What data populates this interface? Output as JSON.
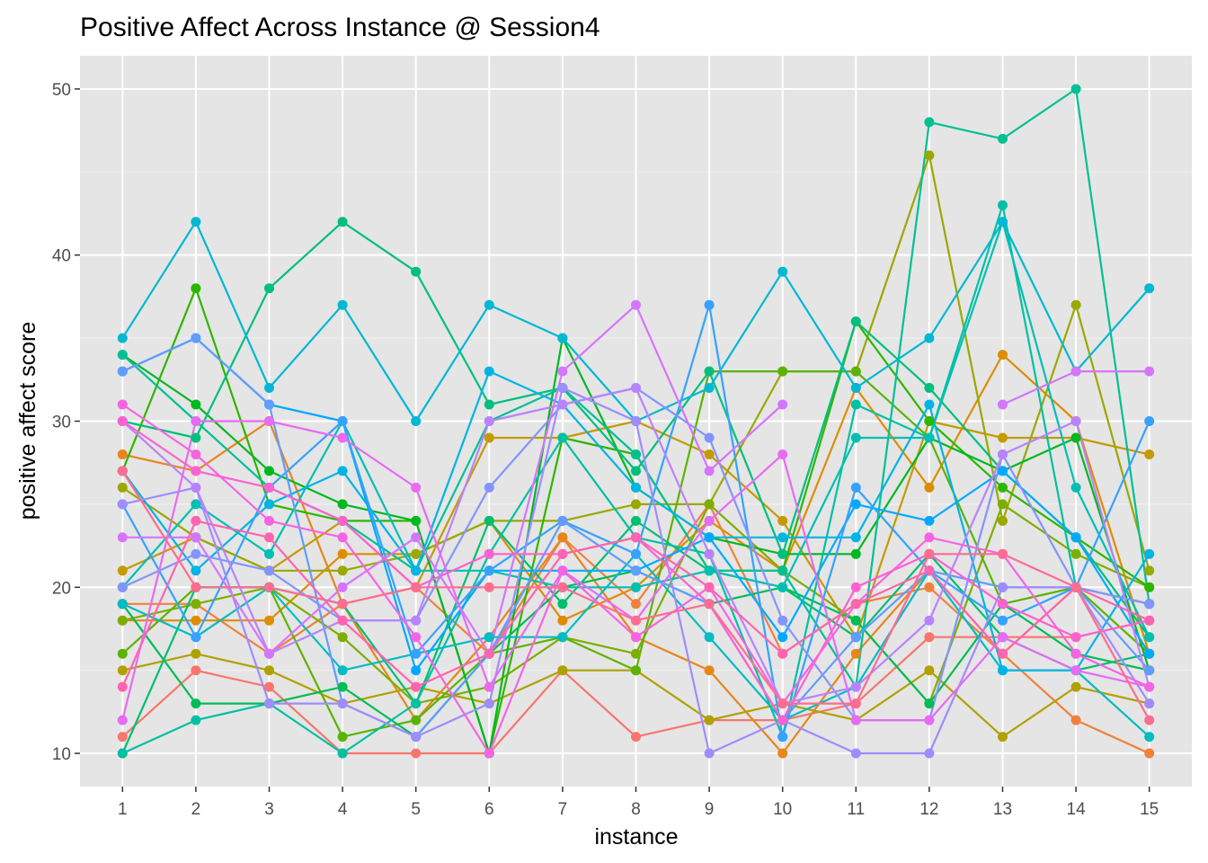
{
  "chart_data": {
    "type": "line",
    "title": "Positive Affect Across Instance @ Session4",
    "xlabel": "instance",
    "ylabel": "positive affect score",
    "x": [
      1,
      2,
      3,
      4,
      5,
      6,
      7,
      8,
      9,
      10,
      11,
      12,
      13,
      14,
      15
    ],
    "x_tick_labels": [
      "1",
      "2",
      "3",
      "4",
      "5",
      "6",
      "7",
      "8",
      "9",
      "10",
      "11",
      "12",
      "13",
      "14",
      "15"
    ],
    "y_ticks": [
      10,
      20,
      30,
      40,
      50
    ],
    "y_tick_labels": [
      "10",
      "20",
      "30",
      "40",
      "50"
    ],
    "xlim": [
      0.42,
      15.58
    ],
    "ylim": [
      8,
      52
    ],
    "grid": true,
    "legend": "none",
    "colors": {
      "panel_background": "#e5e5e5",
      "grid_major": "#ffffff",
      "grid_minor": "#f2f2f2",
      "tick_mark": "#333333"
    },
    "series": [
      {
        "color": "#F8766D",
        "values": [
          11,
          15,
          14,
          10,
          10,
          10,
          15,
          11,
          12,
          12,
          13,
          17,
          17,
          17,
          18
        ]
      },
      {
        "color": "#F0813C",
        "values": [
          19,
          19,
          16,
          19,
          20,
          16,
          23,
          19,
          25,
          16,
          19,
          20,
          16,
          12,
          10
        ]
      },
      {
        "color": "#E7861B",
        "values": [
          28,
          27,
          30,
          19,
          12,
          17,
          23,
          17,
          15,
          10,
          16,
          21,
          16,
          20,
          19
        ]
      },
      {
        "color": "#DD8D00",
        "values": [
          18,
          18,
          18,
          22,
          22,
          24,
          18,
          20,
          24,
          21,
          32,
          26,
          34,
          30,
          16
        ]
      },
      {
        "color": "#C49A00",
        "values": [
          21,
          23,
          21,
          24,
          20,
          29,
          29,
          30,
          28,
          24,
          17,
          30,
          29,
          29,
          28
        ]
      },
      {
        "color": "#AFA100",
        "values": [
          15,
          16,
          15,
          13,
          14,
          13,
          15,
          15,
          12,
          13,
          12,
          15,
          11,
          14,
          13
        ]
      },
      {
        "color": "#9AA800",
        "values": [
          26,
          23,
          21,
          21,
          22,
          24,
          24,
          25,
          25,
          33,
          33,
          46,
          24,
          37,
          21
        ]
      },
      {
        "color": "#7CAE00",
        "values": [
          18,
          19,
          20,
          17,
          13,
          14,
          17,
          16,
          25,
          21,
          18,
          13,
          25,
          22,
          20
        ]
      },
      {
        "color": "#5BB300",
        "values": [
          16,
          20,
          20,
          11,
          12,
          16,
          17,
          15,
          33,
          33,
          33,
          29,
          19,
          20,
          16
        ]
      },
      {
        "color": "#2DB600",
        "values": [
          27,
          38,
          25,
          24,
          24,
          10,
          29,
          28,
          21,
          21,
          36,
          30,
          26,
          23,
          20
        ]
      },
      {
        "color": "#00B81F",
        "values": [
          34,
          31,
          27,
          25,
          24,
          10,
          35,
          26,
          23,
          22,
          22,
          29,
          27,
          29,
          15
        ]
      },
      {
        "color": "#00BC56",
        "values": [
          19,
          13,
          13,
          14,
          11,
          16,
          20,
          21,
          19,
          20,
          18,
          13,
          19,
          16,
          15
        ]
      },
      {
        "color": "#00BE70",
        "values": [
          10,
          20,
          20,
          19,
          13,
          24,
          19,
          24,
          21,
          20,
          17,
          22,
          17,
          15,
          16
        ]
      },
      {
        "color": "#00BF7D",
        "values": [
          30,
          29,
          38,
          42,
          39,
          31,
          32,
          27,
          33,
          22,
          36,
          32,
          27,
          23,
          17
        ]
      },
      {
        "color": "#00C094",
        "values": [
          34,
          30,
          26,
          24,
          21,
          30,
          32,
          28,
          21,
          21,
          14,
          48,
          47,
          50,
          19
        ]
      },
      {
        "color": "#00C0A3",
        "values": [
          10,
          12,
          13,
          10,
          13,
          22,
          29,
          23,
          22,
          11,
          31,
          29,
          43,
          20,
          19
        ]
      },
      {
        "color": "#00BFB2",
        "values": [
          20,
          25,
          22,
          30,
          21,
          21,
          20,
          20,
          21,
          20,
          29,
          29,
          42,
          26,
          17
        ]
      },
      {
        "color": "#00BCC4",
        "values": [
          19,
          17,
          20,
          15,
          16,
          17,
          17,
          22,
          17,
          12,
          14,
          21,
          15,
          15,
          11
        ]
      },
      {
        "color": "#00B8D3",
        "values": [
          35,
          42,
          32,
          37,
          30,
          37,
          35,
          30,
          32,
          39,
          32,
          35,
          42,
          33,
          38
        ]
      },
      {
        "color": "#00B4E4",
        "values": [
          27,
          21,
          25,
          27,
          21,
          33,
          31,
          26,
          23,
          23,
          23,
          31,
          15,
          15,
          22
        ]
      },
      {
        "color": "#00A9FF",
        "values": [
          33,
          35,
          31,
          30,
          15,
          21,
          21,
          21,
          23,
          17,
          25,
          24,
          27,
          23,
          16
        ]
      },
      {
        "color": "#35A2FF",
        "values": [
          25,
          17,
          26,
          30,
          16,
          21,
          24,
          22,
          37,
          11,
          26,
          21,
          18,
          20,
          30
        ]
      },
      {
        "color": "#619CFF",
        "values": [
          33,
          35,
          31,
          13,
          11,
          16,
          24,
          21,
          19,
          12,
          17,
          21,
          20,
          20,
          15
        ]
      },
      {
        "color": "#8494FF",
        "values": [
          20,
          22,
          21,
          18,
          18,
          26,
          31,
          32,
          29,
          18,
          12,
          12,
          28,
          20,
          19
        ]
      },
      {
        "color": "#9F8CFF",
        "values": [
          25,
          26,
          13,
          13,
          11,
          13,
          32,
          30,
          10,
          12,
          10,
          10,
          20,
          20,
          13
        ]
      },
      {
        "color": "#B983FF",
        "values": [
          30,
          26,
          16,
          18,
          18,
          30,
          31,
          32,
          22,
          13,
          14,
          18,
          28,
          30,
          14
        ]
      },
      {
        "color": "#D575FE",
        "values": [
          23,
          23,
          16,
          20,
          23,
          16,
          33,
          37,
          27,
          31,
          null,
          null,
          31,
          33,
          33
        ]
      },
      {
        "color": "#E76BF3",
        "values": [
          12,
          30,
          30,
          29,
          26,
          14,
          21,
          18,
          24,
          28,
          12,
          12,
          17,
          15,
          14
        ]
      },
      {
        "color": "#F564E3",
        "values": [
          31,
          28,
          24,
          23,
          17,
          10,
          21,
          17,
          20,
          13,
          19,
          23,
          22,
          16,
          14
        ]
      },
      {
        "color": "#FD61D1",
        "values": [
          30,
          27,
          26,
          24,
          20,
          22,
          22,
          23,
          19,
          12,
          20,
          22,
          19,
          17,
          18
        ]
      },
      {
        "color": "#FF64B0",
        "values": [
          14,
          24,
          23,
          18,
          14,
          16,
          22,
          23,
          20,
          16,
          19,
          21,
          16,
          20,
          18
        ]
      },
      {
        "color": "#FF6C91",
        "values": [
          27,
          20,
          20,
          19,
          20,
          20,
          20,
          18,
          19,
          13,
          13,
          22,
          22,
          20,
          12
        ]
      }
    ]
  }
}
